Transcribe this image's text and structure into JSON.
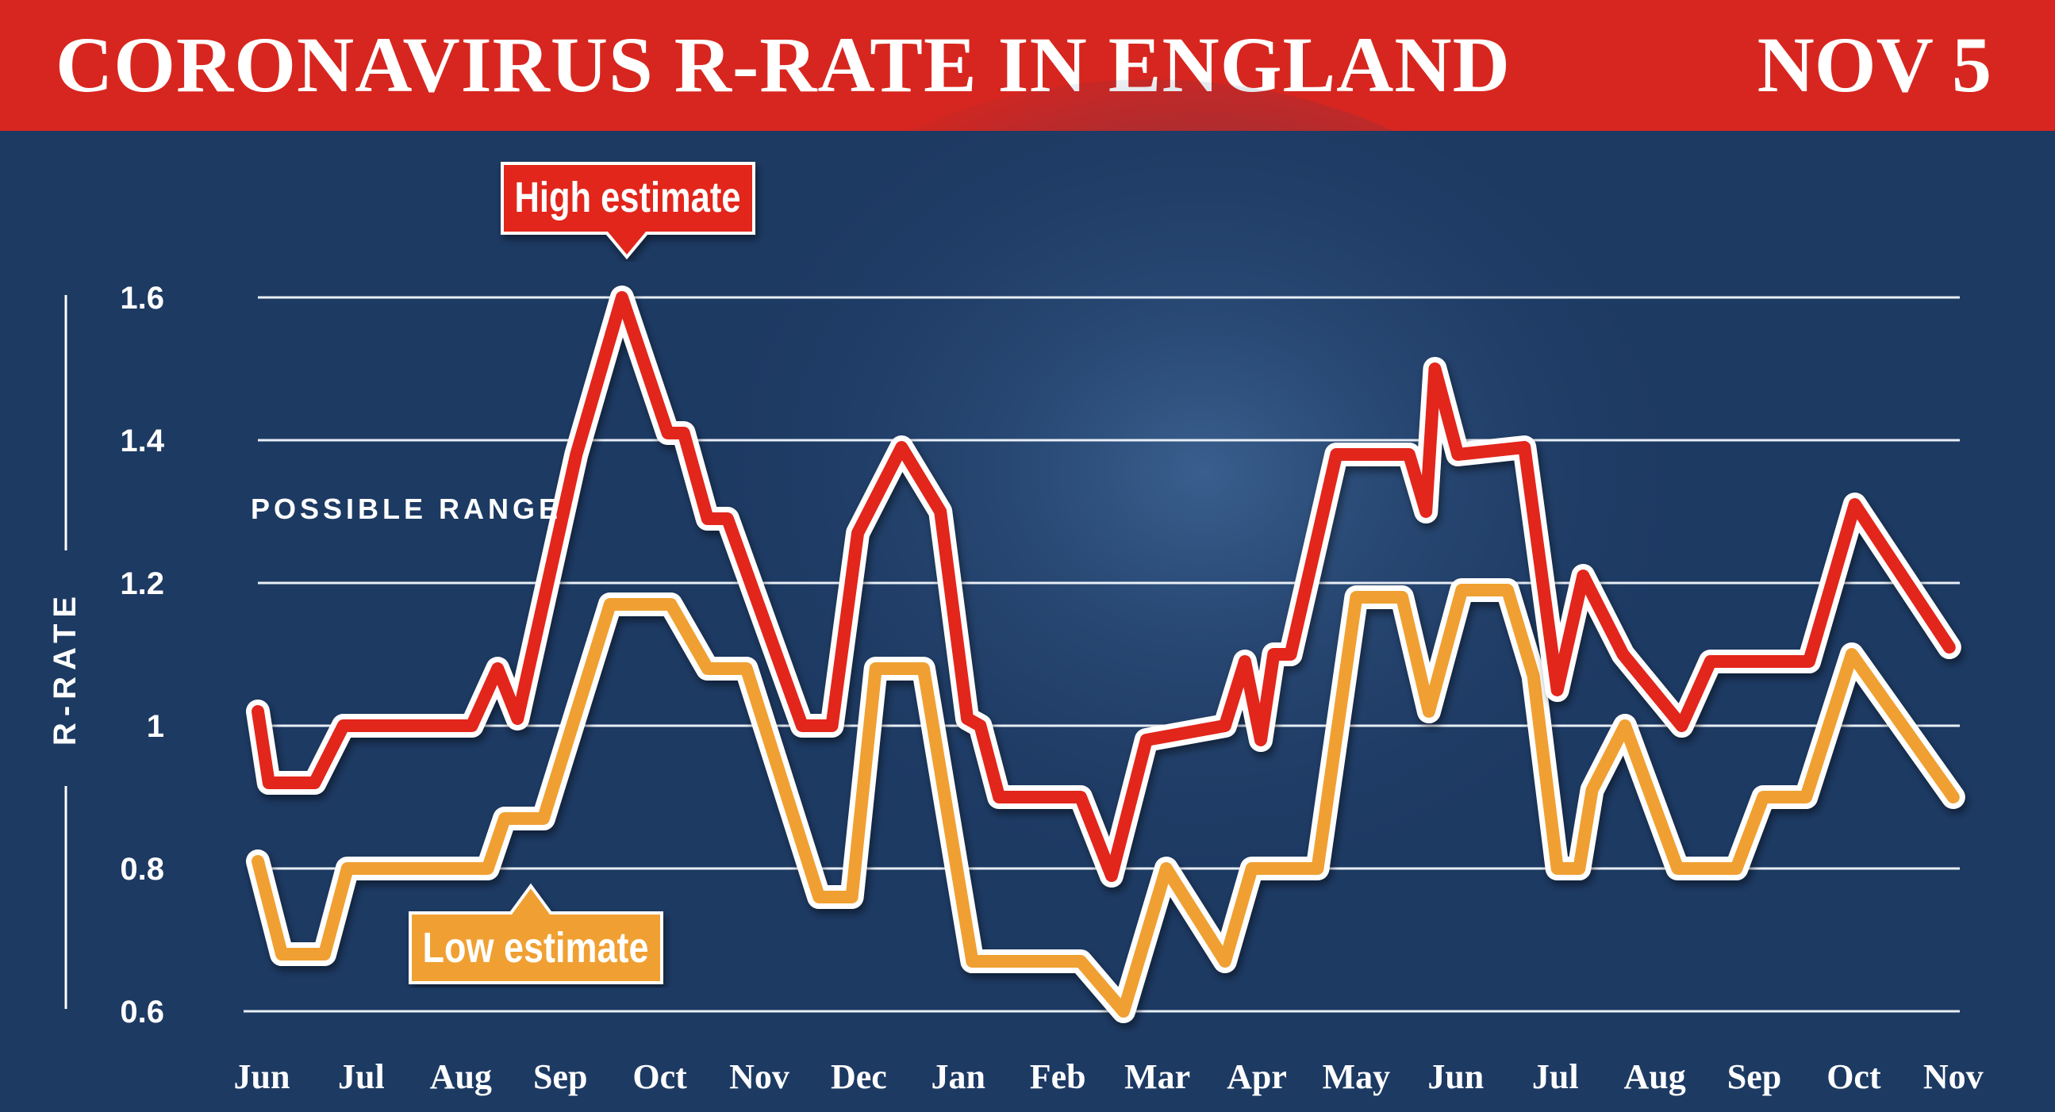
{
  "header": {
    "title": "CORONAVIRUS R-RATE IN ENGLAND",
    "date": "NOV 5"
  },
  "colors": {
    "header": "#d7261f",
    "background": "#1d3a63",
    "high": "#e2281f",
    "low": "#f0a033"
  },
  "chart_data": {
    "type": "line",
    "title": "CORONAVIRUS R-RATE IN ENGLAND",
    "ylabel": "R-RATE",
    "xlabel": "",
    "annotation": "POSSIBLE RANGE",
    "ylim": [
      0.6,
      1.6
    ],
    "yticks": [
      "0.6",
      "0.8",
      "1",
      "1.2",
      "1.4",
      "1.6"
    ],
    "ytick_values": [
      0.6,
      0.8,
      1.0,
      1.2,
      1.4,
      1.6
    ],
    "x_unit": "months since Jun (0 = Jun)",
    "xticks": [
      "Jun",
      "Jul",
      "Aug",
      "Sep",
      "Oct",
      "Nov",
      "Dec",
      "Jan",
      "Feb",
      "Mar",
      "Apr",
      "May",
      "Jun",
      "Jul",
      "Aug",
      "Sep",
      "Oct",
      "Nov"
    ],
    "grid": true,
    "series": [
      {
        "name": "High estimate",
        "color": "#e2281f",
        "x": [
          -0.04,
          0.07,
          0.53,
          0.82,
          2.11,
          2.37,
          2.57,
          3.16,
          3.62,
          4.08,
          4.24,
          4.48,
          4.68,
          5.43,
          5.73,
          5.99,
          6.43,
          6.82,
          7.09,
          7.22,
          7.41,
          8.23,
          8.54,
          8.89,
          9.68,
          9.88,
          10.04,
          10.17,
          10.34,
          10.8,
          11.53,
          11.7,
          11.79,
          12.02,
          12.69,
          13.02,
          13.28,
          13.68,
          14.27,
          14.56,
          15.55,
          16.01,
          16.96
        ],
        "y": [
          1.02,
          0.92,
          0.92,
          1.0,
          1.0,
          1.08,
          1.01,
          1.38,
          1.6,
          1.41,
          1.41,
          1.29,
          1.29,
          1.0,
          1.0,
          1.27,
          1.39,
          1.3,
          1.01,
          1.0,
          0.9,
          0.9,
          0.79,
          0.98,
          1.0,
          1.09,
          0.98,
          1.1,
          1.1,
          1.38,
          1.38,
          1.3,
          1.5,
          1.38,
          1.39,
          1.05,
          1.21,
          1.1,
          1.0,
          1.09,
          1.09,
          1.31,
          1.11
        ]
      },
      {
        "name": "Low estimate",
        "color": "#f0a033",
        "x": [
          -0.04,
          0.2,
          0.63,
          0.86,
          2.27,
          2.44,
          2.83,
          3.5,
          4.11,
          4.48,
          4.87,
          5.6,
          5.93,
          6.17,
          6.65,
          7.14,
          8.23,
          8.66,
          9.09,
          9.68,
          9.95,
          10.61,
          11.0,
          11.46,
          11.73,
          12.06,
          12.52,
          12.78,
          13.02,
          13.24,
          13.37,
          13.7,
          14.23,
          14.82,
          15.09,
          15.52,
          15.98,
          17.0
        ],
        "y": [
          0.81,
          0.68,
          0.68,
          0.8,
          0.8,
          0.87,
          0.87,
          1.17,
          1.17,
          1.08,
          1.08,
          0.76,
          0.76,
          1.08,
          1.08,
          0.67,
          0.67,
          0.6,
          0.8,
          0.67,
          0.8,
          0.8,
          1.18,
          1.18,
          1.02,
          1.19,
          1.19,
          1.07,
          0.8,
          0.8,
          0.91,
          1.0,
          0.8,
          0.8,
          0.9,
          0.9,
          1.1,
          0.9
        ]
      }
    ],
    "legend": {
      "high_label": "High estimate",
      "low_label": "Low estimate",
      "placement": "callouts on lines"
    }
  }
}
